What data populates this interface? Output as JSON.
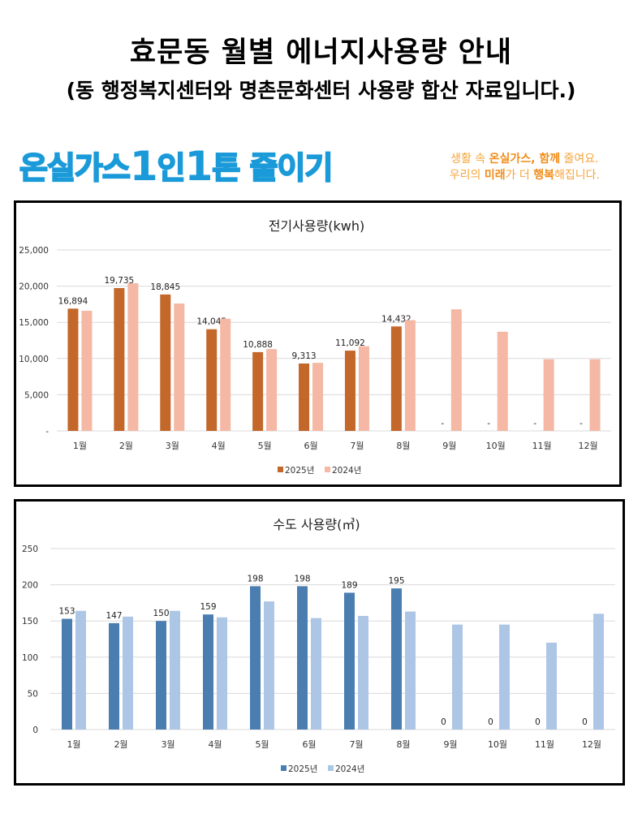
{
  "header": {
    "title": "효문동 월별 에너지사용량 안내",
    "subtitle": "(동 행정복지센터와 명촌문화센터 사용량 합산 자료입니다.)"
  },
  "banner": {
    "slogan_parts": [
      "온실가스",
      "1",
      "인",
      "1",
      "톤 줄이기"
    ],
    "tagline_line1_parts": [
      "생활 속 ",
      "온실가스, 함께",
      " 줄여요."
    ],
    "tagline_line2_parts": [
      "우리의 ",
      "미래",
      "가 더 ",
      "행복",
      "해집니다."
    ],
    "colors": {
      "slogan": "#1a9ad8",
      "tagline": "#f6a43a"
    }
  },
  "chart_data": [
    {
      "type": "bar",
      "title": "전기사용량(kwh)",
      "xlabel": "",
      "ylabel": "",
      "categories": [
        "1월",
        "2월",
        "3월",
        "4월",
        "5월",
        "6월",
        "7월",
        "8월",
        "9월",
        "10월",
        "11월",
        "12월"
      ],
      "series": [
        {
          "name": "2025년",
          "color": "#c3672a",
          "values": [
            16894,
            19735,
            18845,
            14045,
            10888,
            9313,
            11092,
            14432,
            0,
            0,
            0,
            0
          ],
          "labels": [
            "16,894",
            "19,735",
            "18,845",
            "14,045",
            "10,888",
            "9,313",
            "11,092",
            "14,432",
            "-",
            "-",
            "-",
            "-"
          ]
        },
        {
          "name": "2024년",
          "color": "#f4b8a4",
          "values": [
            16600,
            20400,
            17600,
            15500,
            11300,
            9400,
            11700,
            15300,
            16800,
            13700,
            9900,
            9900
          ]
        }
      ],
      "ylim": [
        0,
        25000
      ],
      "yticks": [
        0,
        5000,
        10000,
        15000,
        20000,
        25000
      ],
      "ytick_labels": [
        "-",
        "5,000",
        "10,000",
        "15,000",
        "20,000",
        "25,000"
      ],
      "grid": true,
      "legend": "bottom"
    },
    {
      "type": "bar",
      "title": "수도 사용량(㎥)",
      "xlabel": "",
      "ylabel": "",
      "categories": [
        "1월",
        "2월",
        "3월",
        "4월",
        "5월",
        "6월",
        "7월",
        "8월",
        "9월",
        "10월",
        "11월",
        "12월"
      ],
      "series": [
        {
          "name": "2025년",
          "color": "#4a7eb0",
          "values": [
            153,
            147,
            150,
            159,
            198,
            198,
            189,
            195,
            0,
            0,
            0,
            0
          ],
          "labels": [
            "153",
            "147",
            "150",
            "159",
            "198",
            "198",
            "189",
            "195",
            "0",
            "0",
            "0",
            "0"
          ]
        },
        {
          "name": "2024년",
          "color": "#adc6e5",
          "values": [
            164,
            156,
            164,
            155,
            177,
            154,
            157,
            163,
            145,
            145,
            120,
            160
          ]
        }
      ],
      "ylim": [
        0,
        250
      ],
      "yticks": [
        0,
        50,
        100,
        150,
        200,
        250
      ],
      "ytick_labels": [
        "0",
        "50",
        "100",
        "150",
        "200",
        "250"
      ],
      "grid": true,
      "legend": "bottom"
    }
  ]
}
